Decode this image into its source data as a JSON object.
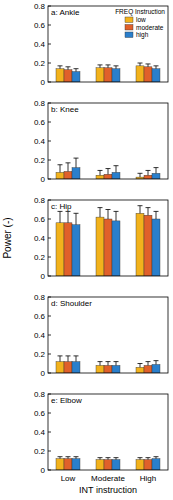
{
  "chart_data": [
    {
      "type": "bar",
      "title": "a: Ankle",
      "categories": [
        "Low",
        "Moderate",
        "High"
      ],
      "ylim": [
        0,
        0.8
      ],
      "yticks": [
        0,
        0.2,
        0.4,
        0.6,
        0.8
      ],
      "tick_labels": "y",
      "legend": "upper right",
      "legend_title": "FREQ Instruction",
      "series": [
        {
          "name": "low",
          "color": "#f2b21c",
          "values": [
            0.14,
            0.15,
            0.17
          ],
          "errors": [
            0.03,
            0.03,
            0.03
          ]
        },
        {
          "name": "moderate",
          "color": "#e0602a",
          "values": [
            0.13,
            0.15,
            0.16
          ],
          "errors": [
            0.03,
            0.03,
            0.03
          ]
        },
        {
          "name": "high",
          "color": "#2a7fcc",
          "values": [
            0.11,
            0.14,
            0.14
          ],
          "errors": [
            0.03,
            0.03,
            0.03
          ]
        }
      ]
    },
    {
      "type": "bar",
      "title": "b: Knee",
      "categories": [
        "Low",
        "Moderate",
        "High"
      ],
      "ylim": [
        0,
        0.8
      ],
      "yticks": [
        0,
        0.2,
        0.4,
        0.6,
        0.8
      ],
      "tick_labels": "y",
      "series": [
        {
          "name": "low",
          "color": "#f2b21c",
          "values": [
            0.07,
            0.04,
            0.02
          ],
          "errors": [
            0.08,
            0.05,
            0.04
          ]
        },
        {
          "name": "moderate",
          "color": "#e0602a",
          "values": [
            0.08,
            0.05,
            0.04
          ],
          "errors": [
            0.09,
            0.06,
            0.05
          ]
        },
        {
          "name": "high",
          "color": "#2a7fcc",
          "values": [
            0.12,
            0.07,
            0.06
          ],
          "errors": [
            0.1,
            0.07,
            0.06
          ]
        }
      ]
    },
    {
      "type": "bar",
      "title": "c: Hip",
      "categories": [
        "Low",
        "Moderate",
        "High"
      ],
      "ylim": [
        0,
        0.8
      ],
      "yticks": [
        0,
        0.2,
        0.4,
        0.6,
        0.8
      ],
      "tick_labels": "y",
      "y_label": "Power (-)",
      "series": [
        {
          "name": "low",
          "color": "#f2b21c",
          "values": [
            0.56,
            0.62,
            0.66
          ],
          "errors": [
            0.12,
            0.1,
            0.08
          ]
        },
        {
          "name": "moderate",
          "color": "#e0602a",
          "values": [
            0.56,
            0.6,
            0.64
          ],
          "errors": [
            0.12,
            0.1,
            0.08
          ]
        },
        {
          "name": "high",
          "color": "#2a7fcc",
          "values": [
            0.54,
            0.58,
            0.6
          ],
          "errors": [
            0.12,
            0.1,
            0.08
          ]
        }
      ]
    },
    {
      "type": "bar",
      "title": "d: Shoulder",
      "categories": [
        "Low",
        "Moderate",
        "High"
      ],
      "ylim": [
        0,
        0.8
      ],
      "yticks": [
        0,
        0.2,
        0.4,
        0.6,
        0.8
      ],
      "tick_labels": "y",
      "series": [
        {
          "name": "low",
          "color": "#f2b21c",
          "values": [
            0.12,
            0.08,
            0.06
          ],
          "errors": [
            0.06,
            0.04,
            0.04
          ]
        },
        {
          "name": "moderate",
          "color": "#e0602a",
          "values": [
            0.12,
            0.08,
            0.08
          ],
          "errors": [
            0.06,
            0.04,
            0.04
          ]
        },
        {
          "name": "high",
          "color": "#2a7fcc",
          "values": [
            0.12,
            0.08,
            0.09
          ],
          "errors": [
            0.06,
            0.04,
            0.04
          ]
        }
      ]
    },
    {
      "type": "bar",
      "title": "e: Elbow",
      "categories": [
        "Low",
        "Moderate",
        "High"
      ],
      "ylim": [
        0,
        0.8
      ],
      "yticks": [
        0,
        0.2,
        0.4,
        0.6,
        0.8
      ],
      "x_label": "INT instruction",
      "series": [
        {
          "name": "low",
          "color": "#f2b21c",
          "values": [
            0.12,
            0.11,
            0.11
          ],
          "errors": [
            0.02,
            0.02,
            0.02
          ]
        },
        {
          "name": "moderate",
          "color": "#e0602a",
          "values": [
            0.12,
            0.11,
            0.11
          ],
          "errors": [
            0.02,
            0.02,
            0.02
          ]
        },
        {
          "name": "high",
          "color": "#2a7fcc",
          "values": [
            0.12,
            0.11,
            0.12
          ],
          "errors": [
            0.02,
            0.02,
            0.02
          ]
        }
      ]
    }
  ]
}
